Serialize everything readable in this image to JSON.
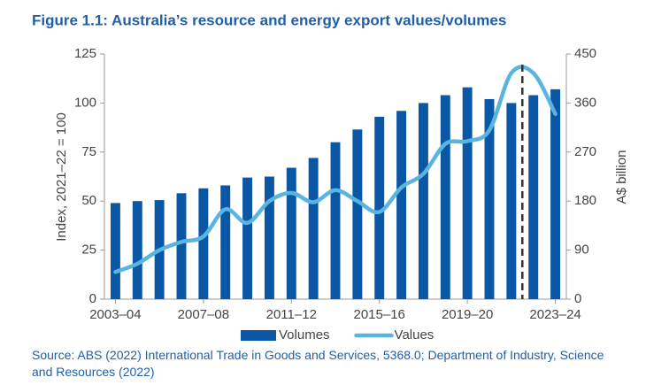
{
  "chart_data": {
    "type": "bar_line",
    "title": "Figure 1.1: Australia’s resource and energy export values/volumes",
    "ylabel": "Index, 2021–22 = 100",
    "y2label": "A$ billion",
    "categories": [
      "2003–04",
      null,
      null,
      null,
      "2007–08",
      null,
      null,
      null,
      "2011–12",
      null,
      null,
      null,
      "2015–16",
      null,
      null,
      null,
      "2019–20",
      null,
      null,
      null,
      "2023–24"
    ],
    "series": [
      {
        "name": "Volumes",
        "type": "bar",
        "color": "#0a57a6",
        "values": [
          49,
          50,
          50.5,
          54,
          56.5,
          58,
          62,
          62.5,
          67,
          72,
          80,
          86.5,
          93,
          96,
          100,
          104,
          108,
          102,
          100,
          104,
          107
        ]
      },
      {
        "name": "Values",
        "type": "line",
        "axis": "y2",
        "color": "#5ab4e2",
        "values": [
          50,
          65,
          90,
          105,
          115,
          165,
          140,
          180,
          195,
          178,
          200,
          180,
          160,
          205,
          230,
          285,
          290,
          310,
          415,
          415,
          340
        ]
      }
    ],
    "ylim": [
      0,
      125
    ],
    "yticks": [
      0,
      25,
      50,
      75,
      100,
      125
    ],
    "y2lim": [
      0,
      450
    ],
    "y2ticks": [
      0,
      90,
      180,
      270,
      360,
      450
    ],
    "grid": false,
    "legend": "bottom",
    "source": "Source: ABS (2022) International Trade in Goods and Services, 5368.0; Department of Industry, Science and Resources (2022)"
  }
}
